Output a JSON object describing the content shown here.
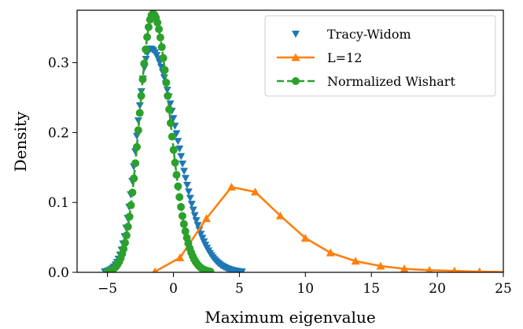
{
  "chart_data": {
    "type": "line",
    "xlabel": "Maximum eigenvalue",
    "ylabel": "Density",
    "xlim": [
      -7.3,
      25
    ],
    "ylim": [
      0,
      0.375
    ],
    "xticks": [
      -5,
      0,
      5,
      10,
      15,
      20,
      25
    ],
    "xtick_labels": [
      "−5",
      "0",
      "5",
      "10",
      "15",
      "20",
      "25"
    ],
    "yticks": [
      0.0,
      0.1,
      0.2,
      0.3
    ],
    "ytick_labels": [
      "0.0",
      "0.1",
      "0.2",
      "0.3"
    ],
    "legend_position": "top-right",
    "series": [
      {
        "name": "Tracy-Widom",
        "color": "#1f77b4",
        "marker": "triangle-down",
        "line": "none",
        "x_range": [
          -5.2,
          5.2
        ],
        "mode_x": -1.77,
        "peak_density": 0.32,
        "shape": "Tracy-Widom (beta=1) density, dense samples"
      },
      {
        "name": "L=12",
        "color": "#ff7f0e",
        "marker": "triangle-up",
        "line": "solid",
        "x": [
          -1.4,
          0.5,
          2.5,
          4.4,
          6.2,
          8.1,
          10.0,
          11.9,
          13.8,
          15.7,
          17.5,
          19.4,
          21.3,
          23.2,
          25.1
        ],
        "y": [
          0.001,
          0.021,
          0.077,
          0.122,
          0.115,
          0.081,
          0.049,
          0.028,
          0.016,
          0.009,
          0.005,
          0.003,
          0.002,
          0.001,
          0.0005
        ]
      },
      {
        "name": "Normalized Wishart",
        "color": "#2ca02c",
        "marker": "circle",
        "line": "dashed",
        "x_range": [
          -5.0,
          2.8
        ],
        "mode_x": -1.55,
        "peak_density": 0.37,
        "shape": "narrow right-skewed density, dense samples"
      }
    ]
  }
}
